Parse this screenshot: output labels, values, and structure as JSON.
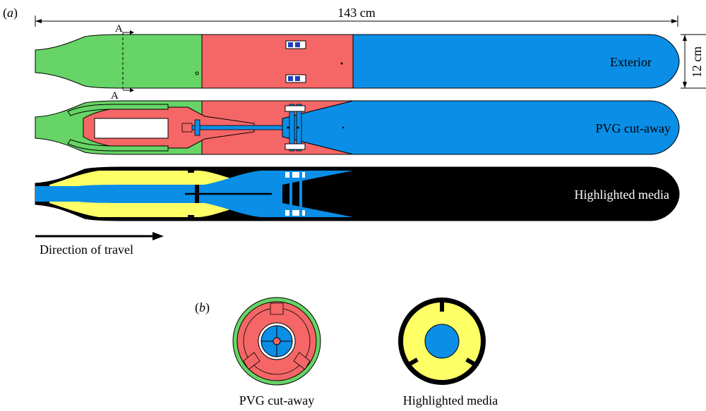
{
  "panel_a": {
    "label_open": "(",
    "label_letter": "a",
    "label_close": ")",
    "length_label": "143 cm",
    "height_label": "12 cm",
    "section_marker": "A",
    "rows": {
      "exterior": "Exterior",
      "pvg": "PVG cut-away",
      "media": "Highlighted media"
    },
    "direction_label": "Direction of travel"
  },
  "panel_b": {
    "label_open": "(",
    "label_letter": "b",
    "label_close": ")",
    "pvg_caption": "PVG cut-away",
    "media_caption": "Highlighted media"
  },
  "colors": {
    "green": "#66d466",
    "red": "#f56666",
    "blue": "#0a8ee6",
    "yellow": "#ffff66",
    "black": "#000000",
    "white": "#ffffff"
  }
}
